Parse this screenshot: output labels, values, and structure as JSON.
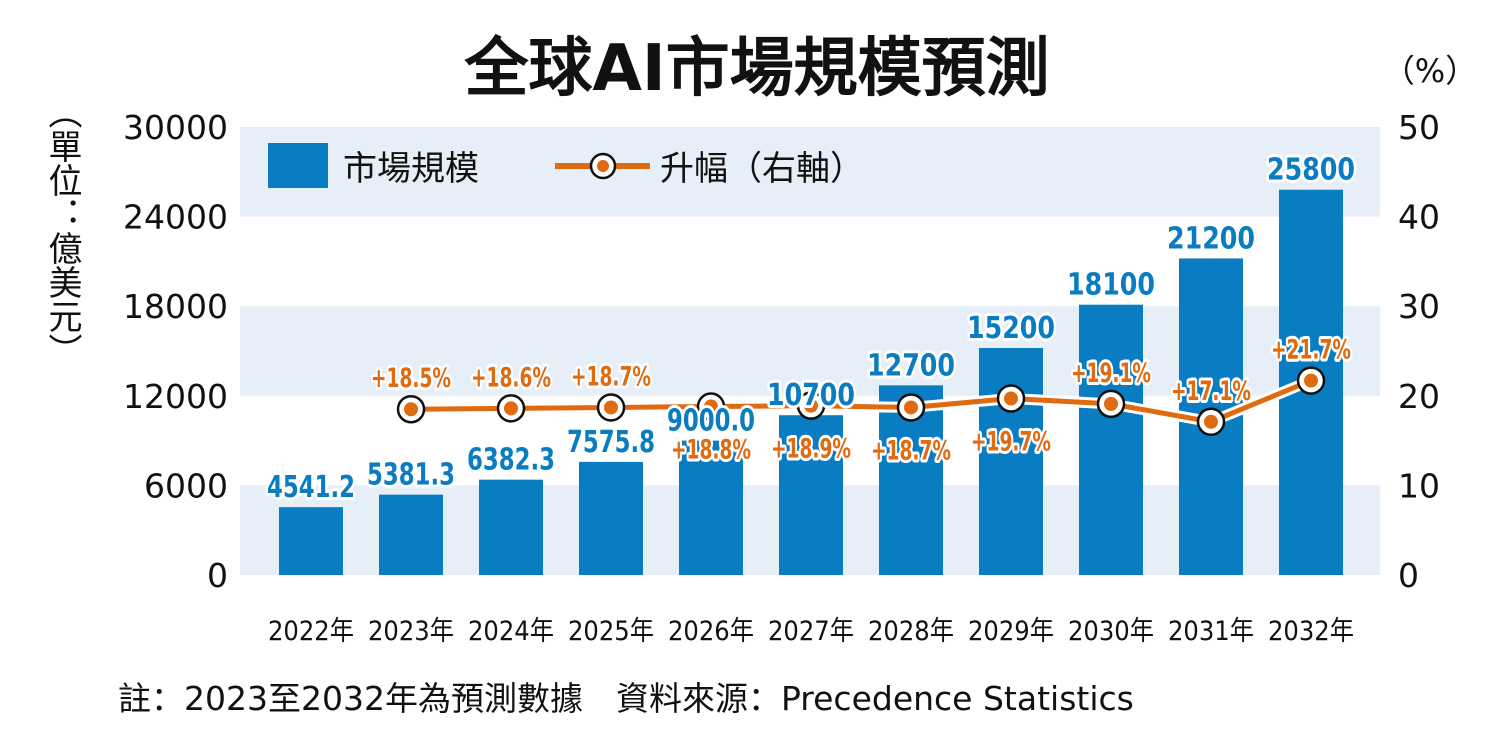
{
  "chart_data": {
    "type": "bar+line",
    "title": "全球AI市場規模預測",
    "left_axis_label": "（單位：億美元）",
    "right_axis_label": "（%）",
    "categories": [
      "2022年",
      "2023年",
      "2024年",
      "2025年",
      "2026年",
      "2027年",
      "2028年",
      "2029年",
      "2030年",
      "2031年",
      "2032年"
    ],
    "series": [
      {
        "name": "市場規模",
        "type": "bar",
        "axis": "left",
        "color": "#0a7cc1",
        "values": [
          4541.2,
          5381.3,
          6382.3,
          7575.8,
          9000.0,
          10700,
          12700,
          15200,
          18100,
          21200,
          25800
        ],
        "labels": [
          "4541.2",
          "5381.3",
          "6382.3",
          "7575.8",
          "9000.0",
          "10700",
          "12700",
          "15200",
          "18100",
          "21200",
          "25800"
        ]
      },
      {
        "name": "升幅（右軸）",
        "type": "line",
        "axis": "right",
        "color": "#e06a10",
        "values": [
          null,
          18.5,
          18.6,
          18.7,
          18.8,
          18.9,
          18.7,
          19.7,
          19.1,
          17.1,
          21.7
        ],
        "labels": [
          null,
          "+18.5%",
          "+18.6%",
          "+18.7%",
          "+18.8%",
          "+18.9%",
          "+18.7%",
          "+19.7%",
          "+19.1%",
          "+17.1%",
          "+21.7%"
        ]
      }
    ],
    "left_ylim": [
      0,
      30000
    ],
    "left_ticks": [
      "0",
      "6000",
      "12000",
      "18000",
      "24000",
      "30000"
    ],
    "right_ylim": [
      0,
      50
    ],
    "right_ticks": [
      "0",
      "10",
      "20",
      "30",
      "40",
      "50"
    ],
    "grid": "alternating horizontal bands",
    "band_color": "#e6eef7",
    "legend": "top-left",
    "legend_items": [
      "市場規模",
      "升幅（右軸）"
    ],
    "note": "註：2023至2032年為預測數據　資料來源：Precedence Statistics"
  }
}
